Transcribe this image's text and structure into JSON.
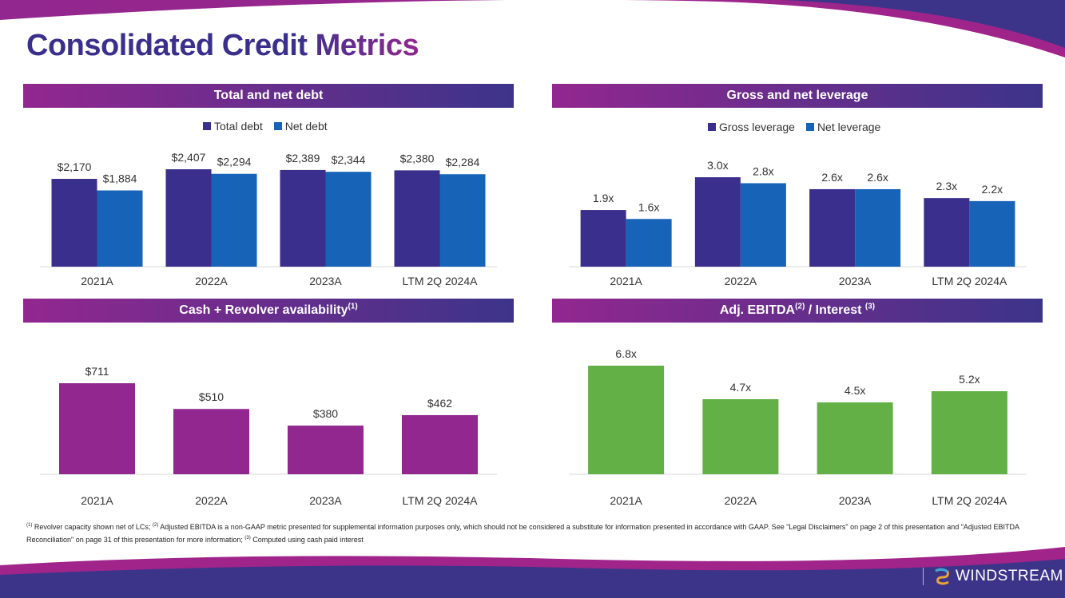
{
  "title": {
    "main": "Consolidated Credit ",
    "accent": "Metrics"
  },
  "colors": {
    "total": "#3a2f8c",
    "net": "#1763b8",
    "cash": "#92278f",
    "ebitda": "#62b046",
    "header_start": "#92278f",
    "header_end": "#3c3489"
  },
  "panels": {
    "debt": {
      "title": "Total and net debt"
    },
    "leverage": {
      "title": "Gross and net leverage"
    },
    "cash": {
      "title": "Cash + Revolver availability",
      "sup": "(1)"
    },
    "ebitda": {
      "title": "Adj. EBITDA",
      "sup1": "(2)",
      "mid": " / Interest ",
      "sup2": "(3)"
    }
  },
  "chart_data": [
    {
      "id": "debt",
      "type": "bar",
      "title": "Total and net debt",
      "categories": [
        "2021A",
        "2022A",
        "2023A",
        "LTM 2Q 2024A"
      ],
      "series": [
        {
          "name": "Total debt",
          "values": [
            2170,
            2407,
            2389,
            2380
          ],
          "labels": [
            "$2,170",
            "$2,407",
            "$2,389",
            "$2,380"
          ]
        },
        {
          "name": "Net debt",
          "values": [
            1884,
            2294,
            2344,
            2284
          ],
          "labels": [
            "$1,884",
            "$2,294",
            "$2,344",
            "$2,284"
          ]
        }
      ],
      "legend": "top-center",
      "unit": "$M"
    },
    {
      "id": "leverage",
      "type": "bar",
      "title": "Gross and net leverage",
      "categories": [
        "2021A",
        "2022A",
        "2023A",
        "LTM 2Q 2024A"
      ],
      "series": [
        {
          "name": "Gross leverage",
          "values": [
            1.9,
            3.0,
            2.6,
            2.3
          ],
          "labels": [
            "1.9x",
            "3.0x",
            "2.6x",
            "2.3x"
          ]
        },
        {
          "name": "Net leverage",
          "values": [
            1.6,
            2.8,
            2.6,
            2.2
          ],
          "labels": [
            "1.6x",
            "2.8x",
            "2.6x",
            "2.2x"
          ]
        }
      ],
      "legend": "top-center"
    },
    {
      "id": "cash",
      "type": "bar",
      "title": "Cash + Revolver availability",
      "categories": [
        "2021A",
        "2022A",
        "2023A",
        "LTM 2Q 2024A"
      ],
      "series": [
        {
          "name": "Cash + Revolver availability",
          "values": [
            711,
            510,
            380,
            462
          ],
          "labels": [
            "$711",
            "$510",
            "$380",
            "$462"
          ]
        }
      ]
    },
    {
      "id": "ebitda",
      "type": "bar",
      "title": "Adj. EBITDA / Interest",
      "categories": [
        "2021A",
        "2022A",
        "2023A",
        "LTM 2Q 2024A"
      ],
      "series": [
        {
          "name": "Adj. EBITDA / Interest",
          "values": [
            6.8,
            4.7,
            4.5,
            5.2
          ],
          "labels": [
            "6.8x",
            "4.7x",
            "4.5x",
            "5.2x"
          ]
        }
      ]
    }
  ],
  "footnote": {
    "s1": "(1)",
    "t1": " Revolver capacity shown net of LCs; ",
    "s2": "(2)",
    "t2": " Adjusted EBITDA is a non-GAAP metric presented for supplemental information purposes only, which should not be considered a substitute for information presented in accordance with GAAP. See \"Legal Disclaimers\" on page 2 of this presentation and \"Adjusted EBITDA Reconciliation\" on page 31 of this presentation for more information; ",
    "s3": "(3)",
    "t3": " Computed using cash paid interest"
  },
  "logo": {
    "text": "WINDSTREAM"
  }
}
